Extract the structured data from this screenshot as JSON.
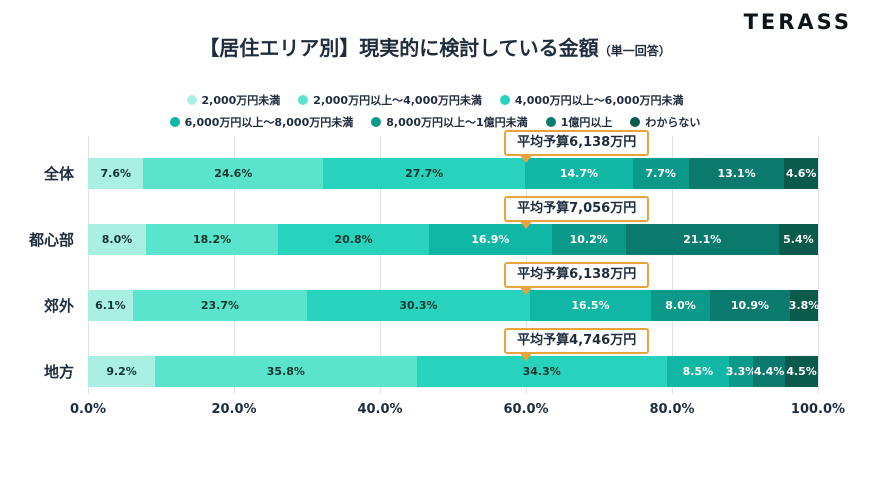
{
  "logo": "TERASS",
  "title": {
    "main": "【居住エリア別】現実的に検討している金額",
    "suffix": "（単一回答）"
  },
  "colors": {
    "callout_border": "#E8A33D",
    "dark_text": "#1F2C3D",
    "gridline": "#DFE3E6"
  },
  "chart_data": {
    "type": "bar",
    "variant": "horizontal-stacked-100pct",
    "legend_position": "top",
    "grid": "vertical",
    "xlim": [
      0,
      100
    ],
    "x_ticks": [
      "0.0%",
      "20.0%",
      "40.0%",
      "60.0%",
      "80.0%",
      "100.0%"
    ],
    "categories": [
      "全体",
      "都心部",
      "郊外",
      "地方"
    ],
    "series": [
      {
        "name": "2,000万円未満",
        "color": "#A9EFE2",
        "text_color": "#12362F",
        "values": [
          7.6,
          8.0,
          6.1,
          9.2
        ]
      },
      {
        "name": "2,000万円以上～4,000万円未満",
        "color": "#5BE4CD",
        "text_color": "#12362F",
        "values": [
          24.6,
          18.2,
          23.7,
          35.8
        ]
      },
      {
        "name": "4,000万円以上～6,000万円未満",
        "color": "#27D3BC",
        "text_color": "#12362F",
        "values": [
          27.7,
          20.8,
          30.3,
          34.3
        ]
      },
      {
        "name": "6,000万円以上～8,000万円未満",
        "color": "#0FB7A4",
        "text_color": "#FFFFFF",
        "values": [
          14.7,
          16.9,
          16.5,
          8.5
        ]
      },
      {
        "name": "8,000万円以上～1億円未満",
        "color": "#0B998A",
        "text_color": "#FFFFFF",
        "values": [
          7.7,
          10.2,
          8.0,
          3.3
        ]
      },
      {
        "name": "1億円以上",
        "color": "#0A7A6E",
        "text_color": "#FFFFFF",
        "values": [
          13.1,
          21.1,
          10.9,
          4.4
        ]
      },
      {
        "name": "わからない",
        "color": "#0B5B4D",
        "text_color": "#FFFFFF",
        "values": [
          4.6,
          5.4,
          3.8,
          4.5
        ]
      }
    ],
    "annotations": [
      "平均予算6,138万円",
      "平均予算7,056万円",
      "平均予算6,138万円",
      "平均予算4,746万円"
    ]
  }
}
